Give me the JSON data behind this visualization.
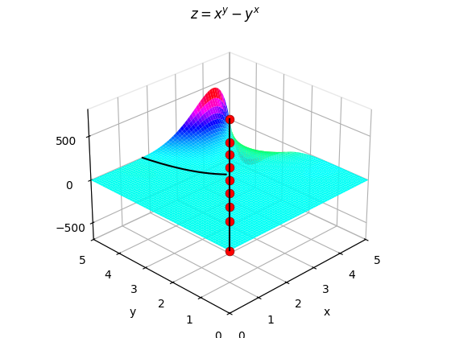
{
  "title": "$z = x^y - y^x$",
  "xlabel": "x",
  "ylabel": "y",
  "x_range": [
    0,
    5
  ],
  "y_range": [
    0,
    5
  ],
  "n_grid": 60,
  "colormap": "hsv",
  "diagonal_color": "black",
  "diagonal_linewidth": 1.5,
  "dot_color": "red",
  "dot_size": 60,
  "elev": 28,
  "azim": -135,
  "zlim": [
    -700,
    800
  ],
  "zticks": [
    -500,
    0,
    500
  ]
}
